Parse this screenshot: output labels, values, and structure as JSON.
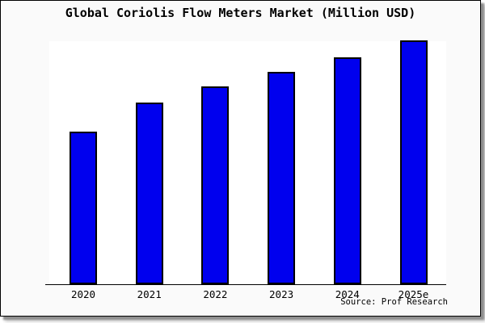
{
  "header": {
    "title": "Global Coriolis Flow Meters Market (Million USD)"
  },
  "footer": {
    "source_note": "Source: Prof Research"
  },
  "chart_data": {
    "type": "bar",
    "title": "Global Coriolis Flow Meters Market (Million USD)",
    "categories": [
      "2020",
      "2021",
      "2022",
      "2023",
      "2024",
      "2025e"
    ],
    "values_relative_pct": [
      62.6,
      74.7,
      81.1,
      87.3,
      93.3,
      100
    ],
    "value_note": "No y-axis, gridlines or data labels are shown in the image; values are bar heights relative to the tallest bar (2025e = 100).",
    "xlabel": "",
    "ylabel": "",
    "y_axis_labels_visible": false,
    "gridlines": false,
    "legend": false,
    "source": "Source: Prof Research",
    "colors": {
      "bar_fill": "#0000ee",
      "bar_border": "#000000",
      "figure_background": "#fafafa",
      "plot_background": "#ffffff",
      "text": "#000000"
    }
  }
}
